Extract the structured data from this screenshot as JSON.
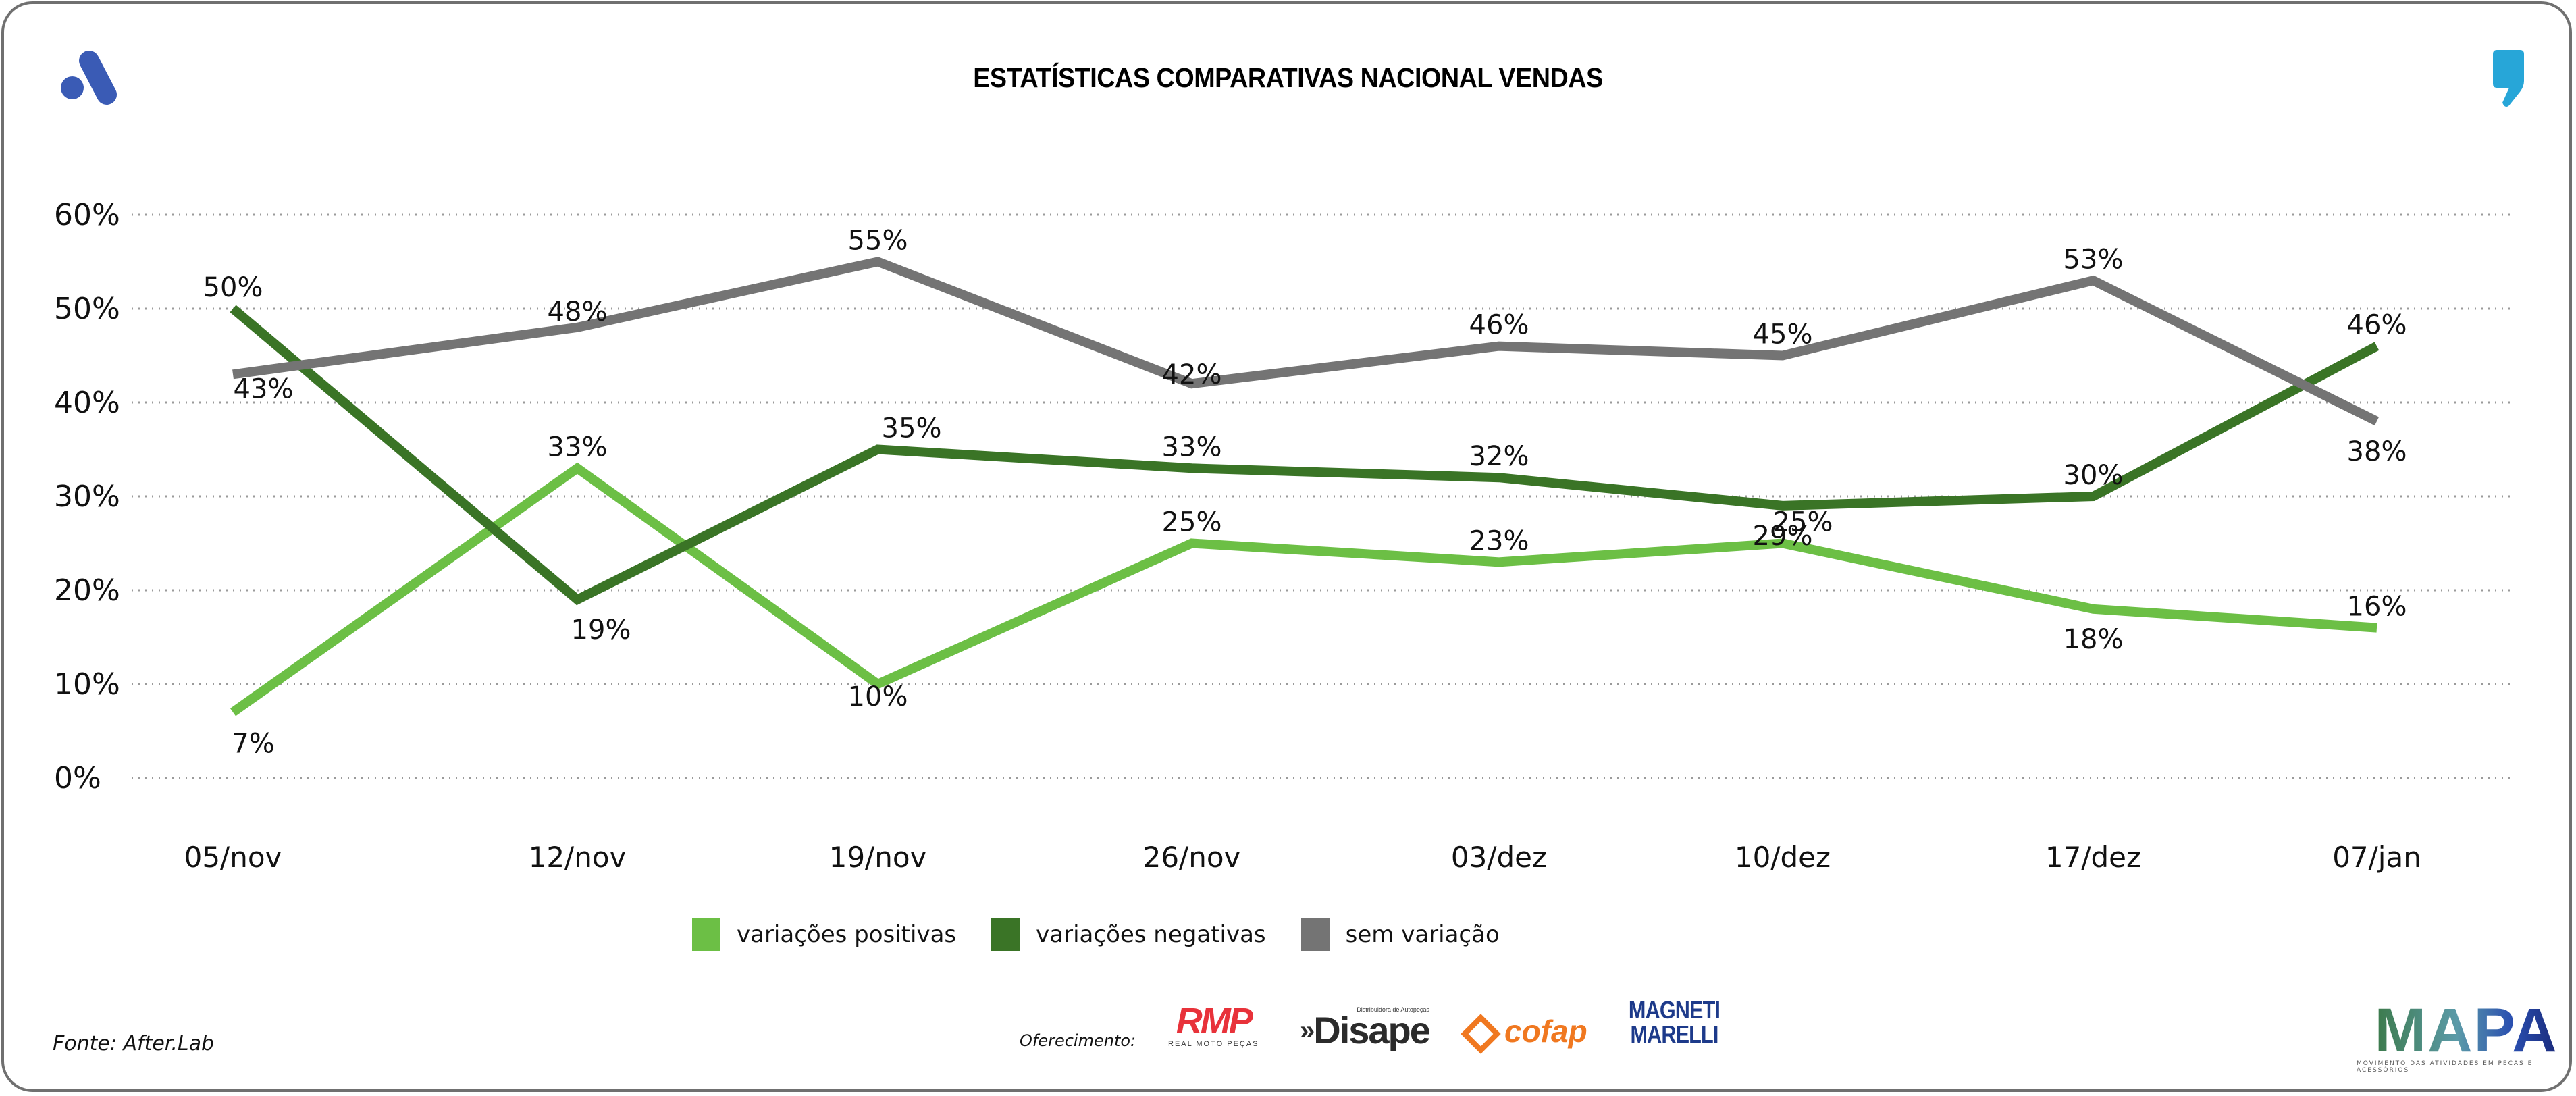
{
  "header": {
    "title": "ESTATÍSTICAS COMPARATIVAS NACIONAL VENDAS",
    "left_logo_icon": "after-lab-logo-icon",
    "right_logo_icon": "comma-quote-icon",
    "left_logo_color": "#3a5bb5",
    "right_logo_color": "#27a6d8"
  },
  "chart_data": {
    "type": "line",
    "title": "ESTATÍSTICAS COMPARATIVAS NACIONAL VENDAS",
    "xlabel": "",
    "ylabel": "",
    "categories": [
      "05/nov",
      "12/nov",
      "19/nov",
      "26/nov",
      "03/dez",
      "10/dez",
      "17/dez",
      "07/jan"
    ],
    "ylim": [
      0,
      60
    ],
    "yticks": [
      0,
      10,
      20,
      30,
      40,
      50,
      60
    ],
    "ytick_labels": [
      "0%",
      "10%",
      "20%",
      "30%",
      "40%",
      "50%",
      "60%"
    ],
    "grid": "horizontal dotted",
    "legend_position": "bottom-center",
    "series": [
      {
        "name": "variações positivas",
        "color": "#6cbf45",
        "values": [
          7,
          33,
          10,
          25,
          23,
          25,
          18,
          16
        ],
        "labels": [
          "7%",
          "33%",
          "10%",
          "25%",
          "23%",
          "25%",
          "18%",
          "16%"
        ]
      },
      {
        "name": "variações negativas",
        "color": "#3a7426",
        "values": [
          50,
          19,
          35,
          33,
          32,
          29,
          30,
          46
        ],
        "labels": [
          "50%",
          "19%",
          "35%",
          "33%",
          "32%",
          "29%",
          "30%",
          "46%"
        ]
      },
      {
        "name": "sem variação",
        "color": "#747474",
        "values": [
          43,
          48,
          55,
          42,
          46,
          45,
          53,
          38
        ],
        "labels": [
          "43%",
          "48%",
          "55%",
          "42%",
          "46%",
          "45%",
          "53%",
          "38%"
        ]
      }
    ]
  },
  "legend": {
    "items": [
      {
        "label": "variações positivas",
        "color": "#6cbf45"
      },
      {
        "label": "variações negativas",
        "color": "#3a7426"
      },
      {
        "label": "sem variação",
        "color": "#747474"
      }
    ]
  },
  "footer": {
    "source": "Fonte: After.Lab",
    "sponsor_label": "Oferecimento:",
    "sponsors": {
      "rmp": {
        "mark": "RMP",
        "sub": "REAL MOTO PEÇAS"
      },
      "disape": {
        "chevron": "»",
        "mark": "Disape",
        "sub": "Distribuidora de Autopeças"
      },
      "cofap": {
        "mark": "cofap"
      },
      "magneti": {
        "line1": "MAGNETI",
        "line2": "MARELLI"
      }
    },
    "mapa": {
      "mark": "MAPA",
      "sub": "MOVIMENTO DAS ATIVIDADES EM PEÇAS E ACESSÓRIOS"
    }
  }
}
